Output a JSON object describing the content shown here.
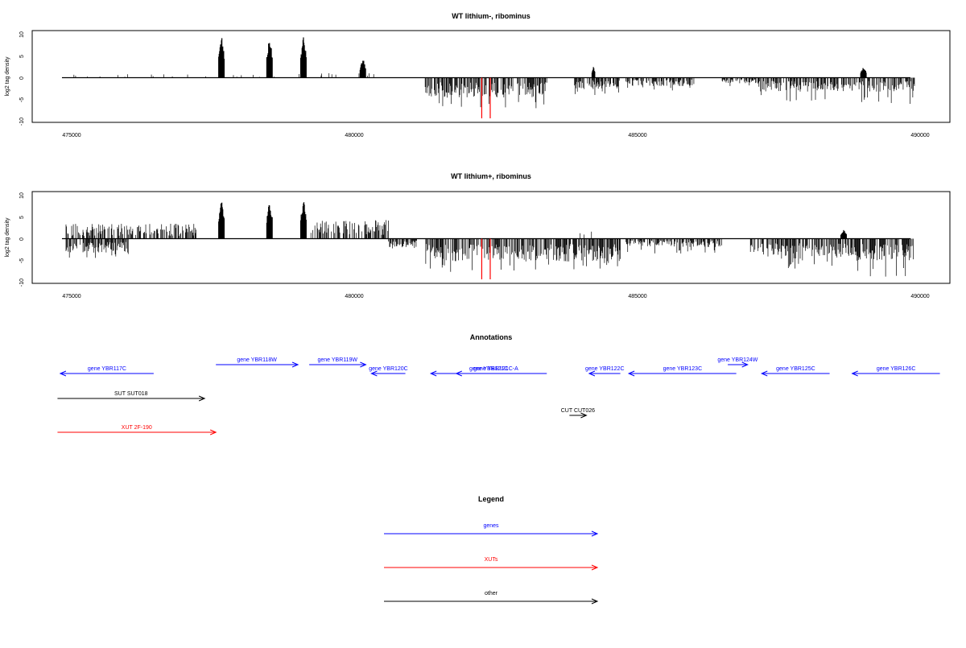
{
  "colors": {
    "gene": "#0000ff",
    "xut": "#ff0000",
    "other": "#000000",
    "bars": "#000000",
    "marker": "#ff0000"
  },
  "chart_data": [
    {
      "type": "bar",
      "title": "WT lithium-, ribominus",
      "ylabel": "log2 tag density",
      "xlim": [
        474900,
        489900
      ],
      "ylim": [
        -10,
        10
      ],
      "xticks": [
        "475000",
        "480000",
        "485000",
        "490000"
      ],
      "yticks": [
        "10",
        "5",
        "0",
        "-5",
        "-10"
      ],
      "red_markers_x": [
        482250,
        482400
      ],
      "positive_regions": [
        {
          "x": [
            474950,
            480600
          ],
          "typical": 0.6,
          "sparse": true
        },
        {
          "x": [
            477600,
            477700
          ],
          "max": 9.8
        },
        {
          "x": [
            478450,
            478550
          ],
          "max": 9.5
        },
        {
          "x": [
            479050,
            479150
          ],
          "max": 9.8
        },
        {
          "x": [
            480100,
            480200
          ],
          "max": 4.5
        },
        {
          "x": [
            484200,
            484250
          ],
          "max": 2.5
        },
        {
          "x": [
            488950,
            489050
          ],
          "max": 2.5
        }
      ],
      "negative_regions": [
        {
          "x": [
            481250,
            483400
          ],
          "typical": -3.5,
          "min": -7.5
        },
        {
          "x": [
            483850,
            484700
          ],
          "typical": -2.0,
          "min": -4.0
        },
        {
          "x": [
            484800,
            486000
          ],
          "typical": -1.5,
          "min": -3.0
        },
        {
          "x": [
            486500,
            487100
          ],
          "typical": -1.0,
          "min": -2.0
        },
        {
          "x": [
            487100,
            488800
          ],
          "typical": -2.5,
          "min": -5.5
        },
        {
          "x": [
            488800,
            489900
          ],
          "typical": -2.5,
          "min": -6.0
        }
      ]
    },
    {
      "type": "bar",
      "title": "WT lithium+, ribominus",
      "ylabel": "log2 tag density",
      "xlim": [
        474900,
        489900
      ],
      "ylim": [
        -10,
        10
      ],
      "xticks": [
        "475000",
        "480000",
        "485000",
        "490000"
      ],
      "yticks": [
        "10",
        "5",
        "0",
        "-5",
        "-10"
      ],
      "red_markers_x": [
        482250,
        482400
      ],
      "positive_regions": [
        {
          "x": [
            474900,
            477200
          ],
          "typical": 2.0,
          "dense": true
        },
        {
          "x": [
            477600,
            477700
          ],
          "max": 9.2
        },
        {
          "x": [
            478450,
            478550
          ],
          "max": 9.0
        },
        {
          "x": [
            479050,
            479150
          ],
          "max": 9.4
        },
        {
          "x": [
            479200,
            480600
          ],
          "typical": 2.5,
          "dense": true
        },
        {
          "x": [
            483800,
            484500
          ],
          "typical": 1.0
        },
        {
          "x": [
            488600,
            488700
          ],
          "max": 2.0
        }
      ],
      "negative_regions": [
        {
          "x": [
            474900,
            476000
          ],
          "typical": -2.5,
          "min": -4.5
        },
        {
          "x": [
            480600,
            481100
          ],
          "typical": -1.5,
          "min": -3.0
        },
        {
          "x": [
            481250,
            483400
          ],
          "typical": -4.0,
          "min": -8.0
        },
        {
          "x": [
            483400,
            484700
          ],
          "typical": -4.0,
          "min": -7.0
        },
        {
          "x": [
            484800,
            486500
          ],
          "typical": -1.5,
          "min": -3.5
        },
        {
          "x": [
            487000,
            488800
          ],
          "typical": -3.5,
          "min": -7.0
        },
        {
          "x": [
            488800,
            489900
          ],
          "typical": -4.0,
          "min": -9.0
        }
      ]
    }
  ],
  "annotations": {
    "title": "Annotations",
    "features": [
      {
        "label": "gene YBR117C",
        "type": "gene",
        "strand": "-",
        "x": [
          474800,
          476450
        ],
        "row": 1
      },
      {
        "label": "gene YBR118W",
        "type": "gene",
        "strand": "+",
        "x": [
          477550,
          479000
        ],
        "row": 0
      },
      {
        "label": "gene YBR119W",
        "type": "gene",
        "strand": "+",
        "x": [
          479200,
          480200
        ],
        "row": 0
      },
      {
        "label": "gene YBR120C",
        "type": "gene",
        "strand": "-",
        "x": [
          480300,
          480900
        ],
        "row": 1
      },
      {
        "label": "gene YBR121C",
        "type": "gene",
        "strand": "-",
        "x": [
          481350,
          483400
        ],
        "row": 1
      },
      {
        "label": "gene YBR121C-A",
        "type": "gene",
        "strand": "-",
        "x": [
          481800,
          483200
        ],
        "row": 1
      },
      {
        "label": "gene YBR122C",
        "type": "gene",
        "strand": "-",
        "x": [
          484150,
          484700
        ],
        "row": 1
      },
      {
        "label": "gene YBR123C",
        "type": "gene",
        "strand": "-",
        "x": [
          484850,
          486750
        ],
        "row": 1
      },
      {
        "label": "gene YBR124W",
        "type": "gene",
        "strand": "+",
        "x": [
          486600,
          486950
        ],
        "row": 0
      },
      {
        "label": "gene YBR125C",
        "type": "gene",
        "strand": "-",
        "x": [
          487200,
          488400
        ],
        "row": 1
      },
      {
        "label": "gene YBR126C",
        "type": "gene",
        "strand": "-",
        "x": [
          488800,
          490350
        ],
        "row": 1
      },
      {
        "label": "SUT SUT018",
        "type": "other",
        "strand": "+",
        "x": [
          474750,
          477350
        ],
        "row": 2
      },
      {
        "label": "CUT CUT026",
        "type": "other",
        "strand": "+",
        "x": [
          483800,
          484100
        ],
        "row": 3
      },
      {
        "label": "XUT 2F-190",
        "type": "xut",
        "strand": "+",
        "x": [
          474750,
          477550
        ],
        "row": 4
      }
    ]
  },
  "legend": {
    "title": "Legend",
    "items": [
      {
        "label": "genes",
        "type": "gene"
      },
      {
        "label": "XUTs",
        "type": "xut"
      },
      {
        "label": "other",
        "type": "other"
      }
    ]
  }
}
